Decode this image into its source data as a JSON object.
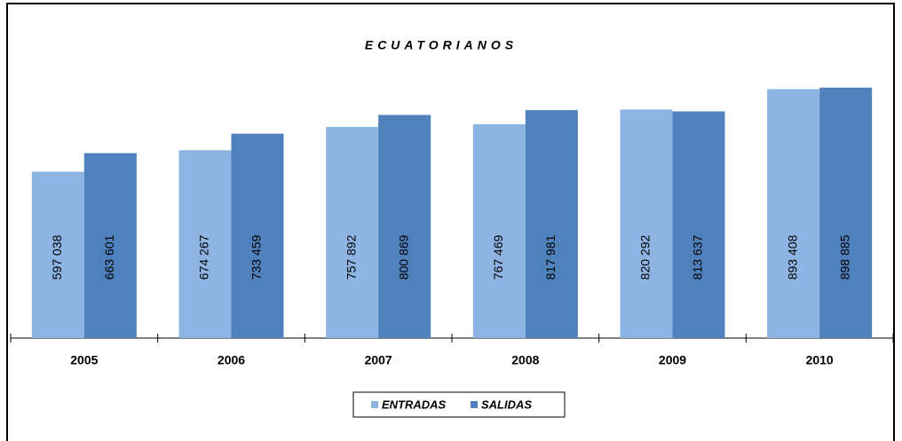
{
  "chart_data": {
    "type": "bar",
    "title": "ECUATORIANOS",
    "categories": [
      "2005",
      "2006",
      "2007",
      "2008",
      "2009",
      "2010"
    ],
    "series": [
      {
        "name": "ENTRADAS",
        "color": "#8db4e2",
        "values": [
          597038,
          674267,
          757892,
          767469,
          820292,
          893408
        ],
        "value_labels": [
          "597 038",
          "674 267",
          "757 892",
          "767 469",
          "820 292",
          "893 408"
        ]
      },
      {
        "name": "SALIDAS",
        "color": "#4f81bd",
        "values": [
          663601,
          733459,
          800869,
          817981,
          813637,
          898885
        ],
        "value_labels": [
          "663 601",
          "733 459",
          "800 869",
          "817 981",
          "813 637",
          "898 885"
        ]
      }
    ],
    "ylim": [
      0,
      1000000
    ],
    "legend": "bottom"
  }
}
